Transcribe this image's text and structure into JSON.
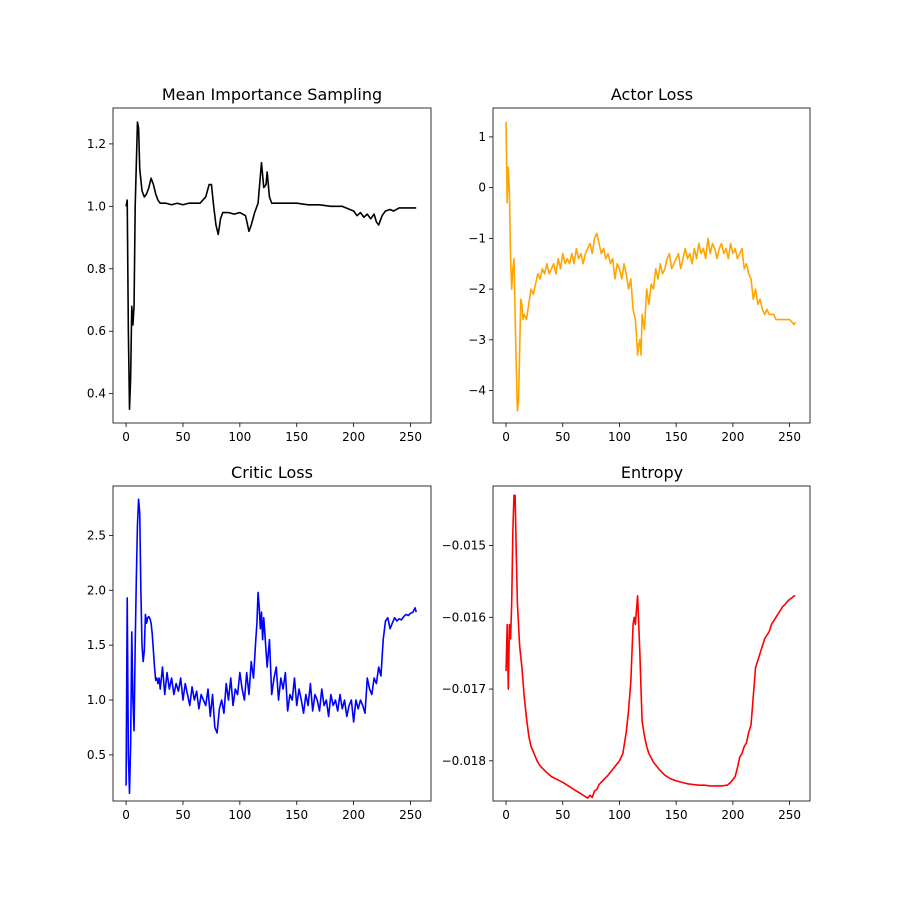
{
  "chart_data": [
    {
      "type": "line",
      "title": "Mean Importance Sampling",
      "xlim": [
        -11.5,
        268
      ],
      "ylim": [
        0.306,
        1.315
      ],
      "xticks": [
        0,
        50,
        100,
        150,
        200,
        250
      ],
      "yticks": [
        0.4,
        0.6,
        0.8,
        1.0,
        1.2
      ],
      "ytick_labels": [
        "0.4",
        "0.6",
        "0.8",
        "1.0",
        "1.2"
      ],
      "color": "#000000",
      "series": [
        {
          "x": [
            0,
            1,
            2,
            3,
            4,
            5,
            6,
            7,
            8,
            10,
            11,
            12,
            14,
            16,
            18,
            20,
            22,
            24,
            26,
            28,
            30,
            35,
            40,
            45,
            50,
            55,
            60,
            65,
            70,
            73,
            75,
            77,
            79,
            81,
            83,
            85,
            90,
            95,
            100,
            105,
            108,
            110,
            113,
            116,
            119,
            121,
            123,
            124,
            126,
            128,
            130,
            135,
            140,
            150,
            160,
            170,
            180,
            190,
            200,
            203,
            206,
            209,
            212,
            215,
            218,
            220,
            222,
            225,
            228,
            232,
            235,
            240,
            245,
            250,
            255
          ],
          "y": [
            1.0,
            1.02,
            0.6,
            0.35,
            0.45,
            0.68,
            0.62,
            0.68,
            1.0,
            1.27,
            1.25,
            1.12,
            1.05,
            1.03,
            1.04,
            1.06,
            1.09,
            1.07,
            1.04,
            1.02,
            1.01,
            1.01,
            1.005,
            1.01,
            1.005,
            1.01,
            1.01,
            1.01,
            1.03,
            1.07,
            1.07,
            1.0,
            0.94,
            0.91,
            0.96,
            0.98,
            0.98,
            0.975,
            0.98,
            0.97,
            0.92,
            0.94,
            0.98,
            1.01,
            1.14,
            1.06,
            1.07,
            1.11,
            1.03,
            1.01,
            1.01,
            1.01,
            1.01,
            1.01,
            1.005,
            1.005,
            1.0,
            1.0,
            0.985,
            0.97,
            0.98,
            0.965,
            0.975,
            0.96,
            0.975,
            0.95,
            0.94,
            0.97,
            0.985,
            0.99,
            0.985,
            0.995,
            0.995,
            0.995,
            0.995
          ]
        }
      ]
    },
    {
      "type": "line",
      "title": "Actor Loss",
      "xlim": [
        -11.5,
        268
      ],
      "ylim": [
        -4.64,
        1.57
      ],
      "xticks": [
        0,
        50,
        100,
        150,
        200,
        250
      ],
      "yticks": [
        -4,
        -3,
        -2,
        -1,
        0,
        1
      ],
      "ytick_labels": [
        "−4",
        "−3",
        "−2",
        "−1",
        "0",
        "1"
      ],
      "color": "#ffa500",
      "series": [
        {
          "x": [
            0,
            1,
            2,
            3,
            4,
            5,
            6,
            7,
            8,
            9,
            10,
            11,
            12,
            13,
            14,
            15,
            16,
            18,
            20,
            22,
            24,
            26,
            28,
            30,
            32,
            34,
            36,
            38,
            40,
            42,
            44,
            46,
            48,
            50,
            52,
            54,
            56,
            58,
            60,
            62,
            64,
            66,
            68,
            70,
            72,
            74,
            76,
            78,
            80,
            82,
            84,
            86,
            88,
            90,
            92,
            94,
            96,
            98,
            100,
            102,
            104,
            106,
            108,
            110,
            112,
            114,
            115,
            116,
            117,
            118,
            119,
            120,
            122,
            124,
            126,
            128,
            130,
            132,
            134,
            136,
            138,
            140,
            142,
            144,
            146,
            148,
            150,
            152,
            154,
            156,
            158,
            160,
            162,
            164,
            166,
            168,
            170,
            172,
            174,
            176,
            178,
            180,
            182,
            184,
            186,
            188,
            190,
            192,
            194,
            196,
            198,
            200,
            202,
            204,
            206,
            208,
            210,
            212,
            214,
            216,
            218,
            220,
            222,
            224,
            226,
            228,
            230,
            232,
            234,
            236,
            238,
            240,
            242,
            244,
            246,
            248,
            250,
            252,
            254,
            255
          ],
          "y": [
            1.3,
            -0.3,
            0.4,
            -0.1,
            -1.4,
            -2.0,
            -1.6,
            -1.4,
            -2.5,
            -3.5,
            -4.4,
            -4.2,
            -3.2,
            -2.2,
            -2.3,
            -2.6,
            -2.5,
            -2.6,
            -2.3,
            -2.0,
            -2.1,
            -1.9,
            -1.7,
            -1.8,
            -1.6,
            -1.7,
            -1.5,
            -1.7,
            -1.6,
            -1.5,
            -1.7,
            -1.4,
            -1.6,
            -1.3,
            -1.5,
            -1.4,
            -1.5,
            -1.3,
            -1.5,
            -1.2,
            -1.4,
            -1.3,
            -1.5,
            -1.3,
            -1.2,
            -1.1,
            -1.3,
            -1.0,
            -0.9,
            -1.1,
            -1.3,
            -1.2,
            -1.4,
            -1.3,
            -1.5,
            -1.4,
            -1.8,
            -1.5,
            -1.6,
            -1.8,
            -1.5,
            -1.7,
            -2.0,
            -1.8,
            -2.4,
            -2.6,
            -2.9,
            -3.3,
            -3.1,
            -3.0,
            -3.3,
            -2.5,
            -2.8,
            -2.0,
            -2.3,
            -1.9,
            -2.0,
            -1.6,
            -1.8,
            -1.5,
            -1.7,
            -1.6,
            -1.4,
            -1.3,
            -1.6,
            -1.5,
            -1.4,
            -1.3,
            -1.6,
            -1.4,
            -1.2,
            -1.4,
            -1.3,
            -1.5,
            -1.2,
            -1.4,
            -1.1,
            -1.3,
            -1.2,
            -1.4,
            -1.0,
            -1.3,
            -1.1,
            -1.2,
            -1.4,
            -1.2,
            -1.1,
            -1.3,
            -1.2,
            -1.4,
            -1.1,
            -1.3,
            -1.2,
            -1.4,
            -1.3,
            -1.2,
            -1.6,
            -1.5,
            -1.7,
            -1.8,
            -2.2,
            -2.0,
            -2.3,
            -2.2,
            -2.4,
            -2.5,
            -2.4,
            -2.5,
            -2.5,
            -2.5,
            -2.6,
            -2.6,
            -2.6,
            -2.6,
            -2.6,
            -2.6,
            -2.6,
            -2.65,
            -2.7,
            -2.65
          ]
        }
      ]
    },
    {
      "type": "line",
      "title": "Critic Loss",
      "xlim": [
        -11.5,
        268
      ],
      "ylim": [
        0.08,
        2.95
      ],
      "xticks": [
        0,
        50,
        100,
        150,
        200,
        250
      ],
      "yticks": [
        0.5,
        1.0,
        1.5,
        2.0,
        2.5
      ],
      "ytick_labels": [
        "0.5",
        "1.0",
        "1.5",
        "2.0",
        "2.5"
      ],
      "color": "#0000ff",
      "series": [
        {
          "x": [
            0,
            1,
            2,
            3,
            4,
            5,
            6,
            7,
            8,
            9,
            10,
            11,
            12,
            13,
            14,
            15,
            16,
            17,
            18,
            19,
            20,
            21,
            22,
            23,
            24,
            25,
            26,
            27,
            28,
            29,
            30,
            32,
            34,
            36,
            38,
            40,
            42,
            44,
            46,
            48,
            50,
            52,
            54,
            56,
            58,
            60,
            62,
            64,
            66,
            68,
            70,
            72,
            74,
            76,
            78,
            80,
            82,
            84,
            86,
            88,
            90,
            92,
            94,
            96,
            98,
            100,
            102,
            104,
            106,
            108,
            110,
            112,
            114,
            115,
            116,
            117,
            118,
            119,
            120,
            121,
            122,
            124,
            126,
            128,
            130,
            132,
            134,
            136,
            138,
            140,
            142,
            144,
            146,
            148,
            150,
            152,
            154,
            156,
            158,
            160,
            162,
            164,
            166,
            168,
            170,
            172,
            174,
            176,
            178,
            180,
            182,
            184,
            186,
            188,
            190,
            192,
            194,
            196,
            198,
            200,
            202,
            204,
            206,
            208,
            210,
            212,
            214,
            216,
            218,
            220,
            222,
            224,
            226,
            228,
            230,
            232,
            234,
            236,
            238,
            240,
            242,
            244,
            246,
            248,
            250,
            252,
            254,
            255
          ],
          "y": [
            0.22,
            1.93,
            0.5,
            0.15,
            0.6,
            1.62,
            1.0,
            0.72,
            1.5,
            2.1,
            2.6,
            2.83,
            2.7,
            2.0,
            1.5,
            1.35,
            1.45,
            1.78,
            1.7,
            1.75,
            1.76,
            1.74,
            1.7,
            1.6,
            1.45,
            1.3,
            1.18,
            1.2,
            1.15,
            1.2,
            1.1,
            1.3,
            1.05,
            1.25,
            1.1,
            1.2,
            1.05,
            1.15,
            1.08,
            1.2,
            1.0,
            1.15,
            1.05,
            0.95,
            1.12,
            1.0,
            1.08,
            0.92,
            1.05,
            1.0,
            0.95,
            1.1,
            0.85,
            1.05,
            0.75,
            0.7,
            0.92,
            1.0,
            0.88,
            1.15,
            1.0,
            1.2,
            0.95,
            1.1,
            1.05,
            1.25,
            1.1,
            1.0,
            1.25,
            1.05,
            1.35,
            1.2,
            1.55,
            1.7,
            1.98,
            1.85,
            1.65,
            1.8,
            1.55,
            1.75,
            1.6,
            1.3,
            1.55,
            1.05,
            1.2,
            1.3,
            1.0,
            1.2,
            1.1,
            1.25,
            0.9,
            1.05,
            1.0,
            1.2,
            0.95,
            1.1,
            1.0,
            0.88,
            1.05,
            0.95,
            1.15,
            0.9,
            1.05,
            1.0,
            0.9,
            1.1,
            0.95,
            1.0,
            0.85,
            1.05,
            0.95,
            1.0,
            0.9,
            1.05,
            0.92,
            1.0,
            0.85,
            0.95,
            1.0,
            0.8,
            1.0,
            0.92,
            1.0,
            0.95,
            0.88,
            1.2,
            1.1,
            1.05,
            1.2,
            1.15,
            1.3,
            1.22,
            1.55,
            1.72,
            1.75,
            1.65,
            1.7,
            1.75,
            1.72,
            1.74,
            1.73,
            1.76,
            1.78,
            1.77,
            1.79,
            1.8,
            1.84,
            1.8
          ]
        }
      ]
    },
    {
      "type": "line",
      "title": "Entropy",
      "xlim": [
        -11.5,
        268
      ],
      "ylim": [
        -0.01856,
        -0.01417
      ],
      "xticks": [
        0,
        50,
        100,
        150,
        200,
        250
      ],
      "yticks": [
        -0.018,
        -0.017,
        -0.016,
        -0.015
      ],
      "ytick_labels": [
        "−0.018",
        "−0.017",
        "−0.016",
        "−0.015"
      ],
      "color": "#ff0000",
      "series": [
        {
          "x": [
            0,
            1,
            2,
            3,
            4,
            5,
            6,
            7,
            8,
            9,
            10,
            11,
            12,
            14,
            16,
            18,
            20,
            22,
            24,
            26,
            28,
            30,
            35,
            40,
            45,
            50,
            55,
            60,
            65,
            70,
            72,
            74,
            76,
            78,
            80,
            82,
            85,
            90,
            95,
            100,
            103,
            106,
            108,
            110,
            111,
            112,
            113,
            114,
            115,
            116,
            117,
            118,
            119,
            120,
            122,
            124,
            126,
            130,
            135,
            140,
            145,
            150,
            155,
            160,
            165,
            170,
            175,
            180,
            185,
            190,
            195,
            198,
            200,
            202,
            204,
            206,
            208,
            210,
            212,
            214,
            216,
            218,
            220,
            222,
            224,
            226,
            228,
            230,
            232,
            234,
            236,
            238,
            240,
            242,
            244,
            246,
            248,
            250,
            252,
            254,
            255
          ],
          "y": [
            -0.01675,
            -0.0161,
            -0.017,
            -0.0161,
            -0.0163,
            -0.0158,
            -0.0148,
            -0.0143,
            -0.0143,
            -0.0151,
            -0.0158,
            -0.0161,
            -0.0164,
            -0.0167,
            -0.0171,
            -0.0174,
            -0.01765,
            -0.0178,
            -0.01787,
            -0.01795,
            -0.01802,
            -0.01807,
            -0.01815,
            -0.01822,
            -0.01826,
            -0.0183,
            -0.01835,
            -0.0184,
            -0.01845,
            -0.0185,
            -0.01852,
            -0.01848,
            -0.01851,
            -0.01842,
            -0.0184,
            -0.01833,
            -0.01828,
            -0.0182,
            -0.0181,
            -0.018,
            -0.0179,
            -0.0176,
            -0.0173,
            -0.0169,
            -0.0165,
            -0.0161,
            -0.016,
            -0.0161,
            -0.0159,
            -0.0157,
            -0.0161,
            -0.0165,
            -0.017,
            -0.01745,
            -0.01765,
            -0.0178,
            -0.0179,
            -0.01802,
            -0.01812,
            -0.0182,
            -0.01825,
            -0.01828,
            -0.0183,
            -0.01832,
            -0.01833,
            -0.01834,
            -0.01834,
            -0.01835,
            -0.01835,
            -0.01835,
            -0.01834,
            -0.0183,
            -0.01826,
            -0.01822,
            -0.0181,
            -0.01795,
            -0.0179,
            -0.0178,
            -0.01775,
            -0.0176,
            -0.0175,
            -0.0171,
            -0.0167,
            -0.0166,
            -0.0165,
            -0.0164,
            -0.0163,
            -0.01625,
            -0.0162,
            -0.0161,
            -0.01605,
            -0.016,
            -0.01595,
            -0.0159,
            -0.01585,
            -0.01582,
            -0.01578,
            -0.01575,
            -0.01573,
            -0.0157,
            -0.0157
          ]
        }
      ]
    }
  ]
}
